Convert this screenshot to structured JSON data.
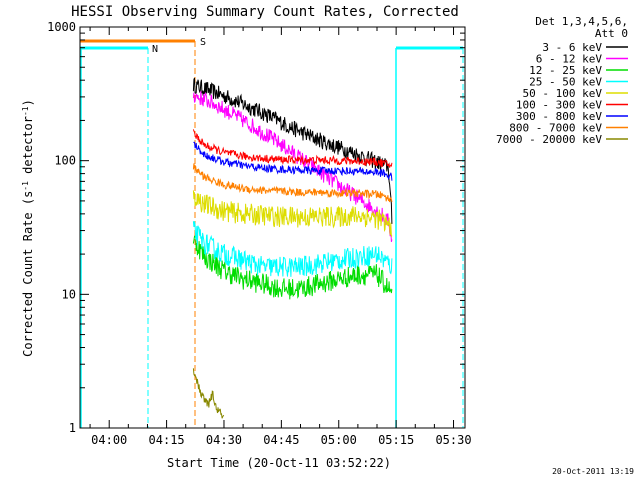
{
  "chart_data": {
    "type": "line",
    "title": "HESSI Observing Summary Count Rates, Corrected",
    "xlabel": "Start Time (20-Oct-11 03:52:22)",
    "ylabel": "Corrected Count Rate (s⁻¹ detector⁻¹)",
    "ylabel_main": "Corrected Count Rate (s",
    "ylabel_sup1": "-1",
    "ylabel_mid": " detector",
    "ylabel_sup2": "-1",
    "ylabel_end": ")",
    "y_scale": "log",
    "ylim": [
      1,
      1000
    ],
    "y_ticks": [
      1,
      10,
      100,
      1000
    ],
    "y_tick_labels": [
      "1",
      "10",
      "100",
      "1000"
    ],
    "xlim": [
      "03:52:22",
      "05:33:00"
    ],
    "x_ticks": [
      "04:00",
      "04:15",
      "04:30",
      "04:45",
      "05:00",
      "05:15",
      "05:30"
    ],
    "x_tick_labels": [
      "04:00",
      "04:15",
      "04:30",
      "04:45",
      "05:00",
      "05:15",
      "05:30"
    ],
    "legend": {
      "placement": "outside-right",
      "header": [
        "Det 1,3,4,5,6,",
        "Att 0"
      ]
    },
    "series": [
      {
        "name": "3 - 6 keV",
        "color": "#000000",
        "x": [
          "04:22",
          "04:27",
          "04:32",
          "04:37",
          "04:42",
          "04:47",
          "04:52",
          "04:57",
          "05:02",
          "05:07",
          "05:11",
          "05:13",
          "05:14"
        ],
        "values": [
          370,
          330,
          290,
          250,
          215,
          180,
          155,
          135,
          120,
          105,
          95,
          90,
          32
        ]
      },
      {
        "name": "6 - 12 keV",
        "color": "#ff00ff",
        "x": [
          "04:22",
          "04:27",
          "04:32",
          "04:37",
          "04:42",
          "04:47",
          "04:52",
          "04:57",
          "05:02",
          "05:07",
          "05:11",
          "05:13",
          "05:14"
        ],
        "values": [
          310,
          270,
          225,
          185,
          150,
          120,
          95,
          75,
          60,
          48,
          40,
          35,
          25
        ]
      },
      {
        "name": "12 - 25 keV",
        "color": "#00dd00",
        "x": [
          "04:22",
          "04:25",
          "04:30",
          "04:35",
          "04:40",
          "04:45",
          "04:50",
          "04:55",
          "05:00",
          "05:05",
          "05:10",
          "05:12",
          "05:14"
        ],
        "values": [
          26,
          19,
          15,
          13,
          12,
          11,
          11,
          12,
          13,
          14,
          14,
          12,
          10
        ]
      },
      {
        "name": "25 - 50 keV",
        "color": "#00ffff",
        "x": [
          "04:22",
          "04:25",
          "04:30",
          "04:35",
          "04:40",
          "04:45",
          "04:50",
          "04:55",
          "05:00",
          "05:05",
          "05:10",
          "05:12",
          "05:14"
        ],
        "values": [
          30,
          24,
          20,
          18,
          16,
          16,
          16,
          17,
          18,
          19,
          20,
          18,
          16
        ]
      },
      {
        "name": "50 - 100 keV",
        "color": "#dddd00",
        "x": [
          "04:22",
          "04:25",
          "04:30",
          "04:35",
          "04:40",
          "04:45",
          "04:50",
          "04:55",
          "05:00",
          "05:05",
          "05:10",
          "05:12",
          "05:14"
        ],
        "values": [
          55,
          47,
          42,
          40,
          39,
          38,
          38,
          38,
          38,
          39,
          37,
          34,
          32
        ]
      },
      {
        "name": "100 - 300 keV",
        "color": "#ff0000",
        "x": [
          "04:22",
          "04:25",
          "04:30",
          "04:35",
          "04:40",
          "04:45",
          "04:50",
          "04:55",
          "05:00",
          "05:05",
          "05:10",
          "05:12",
          "05:14"
        ],
        "values": [
          160,
          130,
          115,
          108,
          104,
          102,
          101,
          101,
          100,
          99,
          98,
          95,
          92
        ]
      },
      {
        "name": "300 - 800 keV",
        "color": "#0000ff",
        "x": [
          "04:22",
          "04:25",
          "04:30",
          "04:35",
          "04:40",
          "04:45",
          "04:50",
          "04:55",
          "05:00",
          "05:05",
          "05:10",
          "05:12",
          "05:14"
        ],
        "values": [
          135,
          110,
          98,
          92,
          88,
          86,
          85,
          84,
          84,
          83,
          82,
          80,
          75
        ]
      },
      {
        "name": "800 - 7000 keV",
        "color": "#ff8000",
        "x": [
          "04:22",
          "04:25",
          "04:30",
          "04:35",
          "04:40",
          "04:45",
          "04:50",
          "04:55",
          "05:00",
          "05:05",
          "05:10",
          "05:12",
          "05:14"
        ],
        "values": [
          90,
          75,
          66,
          62,
          60,
          59,
          58,
          58,
          57,
          57,
          56,
          54,
          50
        ]
      },
      {
        "name": "7000 - 20000 keV",
        "color": "#888800",
        "x": [
          "04:22",
          "04:23",
          "04:24",
          "04:25",
          "04:26",
          "04:27",
          "04:28",
          "04:29",
          "04:30"
        ],
        "values": [
          2.8,
          2.2,
          1.8,
          1.6,
          1.5,
          1.8,
          1.4,
          1.3,
          1.2
        ]
      }
    ],
    "flags": [
      {
        "label": "N",
        "color": "#00ffff"
      },
      {
        "label": "S",
        "color": "#ff8000"
      }
    ],
    "timestamp": "20-Oct-2011 13:19"
  }
}
